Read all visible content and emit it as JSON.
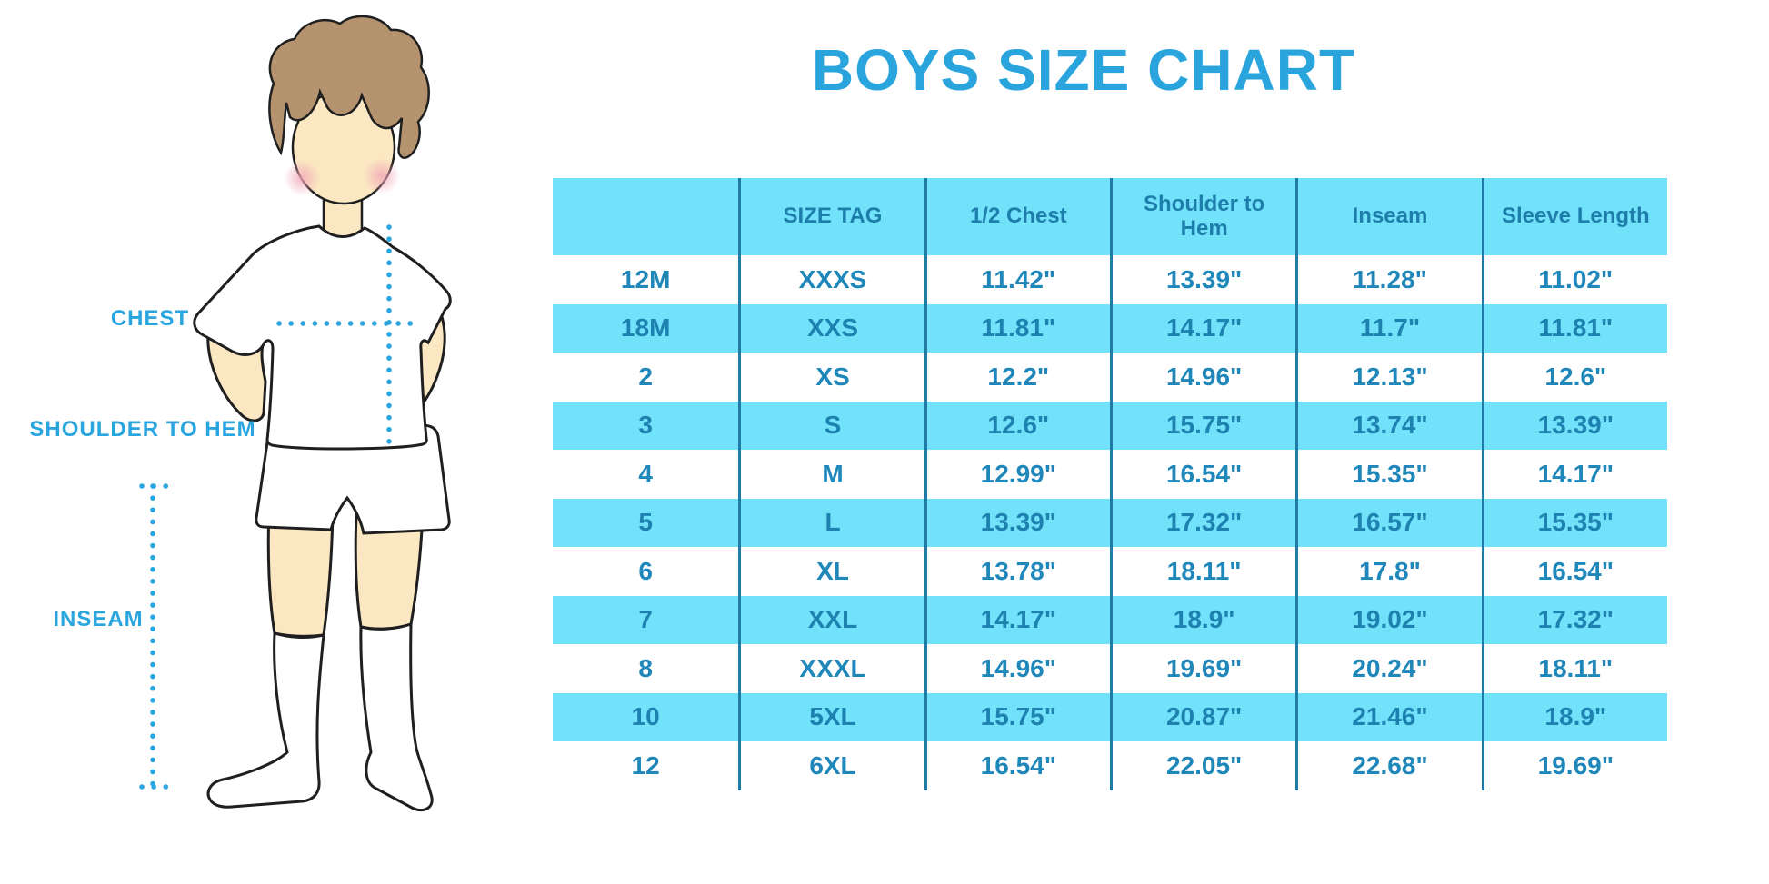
{
  "title": "BOYS SIZE CHART",
  "figure": {
    "description": "illustration of a boy in white t-shirt, shorts and knee socks with dotted measurement lines",
    "labels": {
      "chest": "CHEST",
      "shoulder_to_hem": "SHOULDER TO HEM",
      "inseam": "INSEAM"
    }
  },
  "table": {
    "columns": [
      "",
      "SIZE TAG",
      "1/2 Chest",
      "Shoulder to Hem",
      "Inseam",
      "Sleeve Length"
    ],
    "rows": [
      [
        "12M",
        "XXXS",
        "11.42\"",
        "13.39\"",
        "11.28\"",
        "11.02\""
      ],
      [
        "18M",
        "XXS",
        "11.81\"",
        "14.17\"",
        "11.7\"",
        "11.81\""
      ],
      [
        "2",
        "XS",
        "12.2\"",
        "14.96\"",
        "12.13\"",
        "12.6\""
      ],
      [
        "3",
        "S",
        "12.6\"",
        "15.75\"",
        "13.74\"",
        "13.39\""
      ],
      [
        "4",
        "M",
        "12.99\"",
        "16.54\"",
        "15.35\"",
        "14.17\""
      ],
      [
        "5",
        "L",
        "13.39\"",
        "17.32\"",
        "16.57\"",
        "15.35\""
      ],
      [
        "6",
        "XL",
        "13.78\"",
        "18.11\"",
        "17.8\"",
        "16.54\""
      ],
      [
        "7",
        "XXL",
        "14.17\"",
        "18.9\"",
        "19.02\"",
        "17.32\""
      ],
      [
        "8",
        "XXXL",
        "14.96\"",
        "19.69\"",
        "20.24\"",
        "18.11\""
      ],
      [
        "10",
        "5XL",
        "15.75\"",
        "20.87\"",
        "21.46\"",
        "18.9\""
      ],
      [
        "12",
        "6XL",
        "16.54\"",
        "22.05\"",
        "22.68\"",
        "19.69\""
      ]
    ]
  },
  "colors": {
    "accent_blue": "#29A5DF",
    "title_blue": "#2AA4DC",
    "band_cyan": "#72E1FA",
    "table_text": "#1F87BA",
    "divider": "#1E7CA6",
    "skin": "#FBE7C2",
    "hair": "#B5936F",
    "cheek_pink": "#F2A8B8",
    "outline": "#1F1F1F"
  }
}
